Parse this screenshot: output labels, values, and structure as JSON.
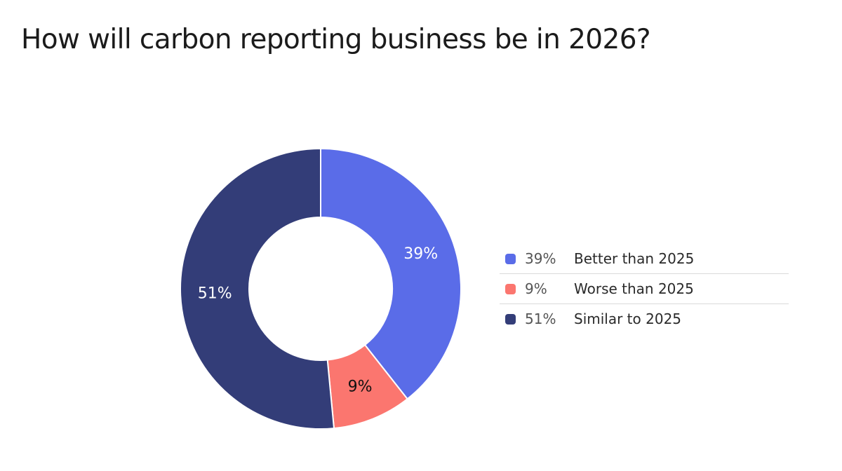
{
  "chart_data": {
    "type": "pie",
    "variant": "donut",
    "title": "How will carbon reporting business be in 2026?",
    "legend_position": "right",
    "slices": [
      {
        "label": "Better than 2025",
        "value": 39,
        "display": "39%",
        "color": "#5a6ce8",
        "label_color": "#ffffff"
      },
      {
        "label": "Worse than 2025",
        "value": 9,
        "display": "9%",
        "color": "#fb766f",
        "label_color": "#111111"
      },
      {
        "label": "Similar to 2025",
        "value": 51,
        "display": "51%",
        "color": "#333d78",
        "label_color": "#ffffff"
      }
    ]
  }
}
